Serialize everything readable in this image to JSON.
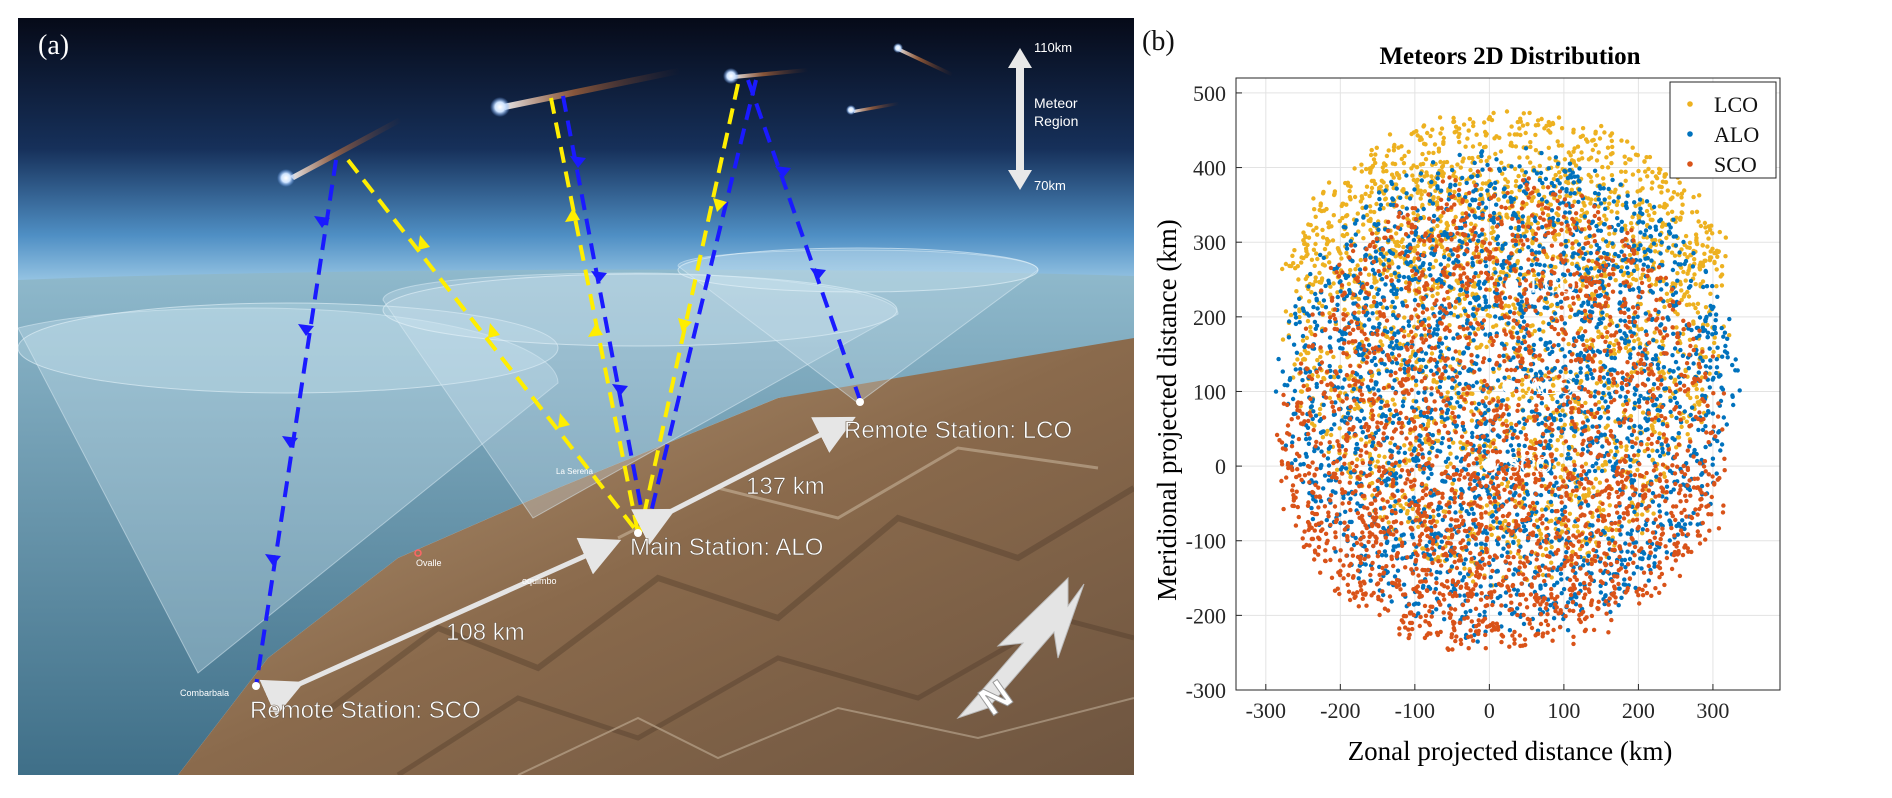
{
  "panel_a": {
    "tag": "(a)",
    "altitude_top": "110km",
    "altitude_bottom": "70km",
    "region_label_1": "Meteor",
    "region_label_2": "Region",
    "station_lco": "Remote Station: LCO",
    "station_alo": "Main Station: ALO",
    "station_sco": "Remote Station: SCO",
    "dist_alo_lco": "137 km",
    "dist_alo_sco": "108 km",
    "place_combarbala": "Combarbala",
    "place_ovalle": "Ovalle",
    "place_la_serena": "La Serena",
    "place_coquimbo": "oquimbo",
    "north_label": "N",
    "colors": {
      "monostatic_path": "#1a1aff",
      "forward_path": "#ffee00",
      "sky_top": "#0a1226",
      "sky_horizon": "#9fd0ee",
      "ocean": "#5c8fa8",
      "land": "#8a6f52"
    }
  },
  "panel_b": {
    "tag": "(b)"
  },
  "chart_data": {
    "type": "scatter",
    "title": "Meteors 2D Distribution",
    "xlabel": "Zonal projected distance (km)",
    "ylabel": "Meridional projected distance (km)",
    "xlim": [
      -340,
      390
    ],
    "ylim": [
      -300,
      520
    ],
    "xticks": [
      -300,
      -200,
      -100,
      0,
      100,
      200,
      300
    ],
    "yticks": [
      -300,
      -200,
      -100,
      0,
      100,
      200,
      300,
      400,
      500
    ],
    "grid": true,
    "legend": "top-right",
    "series": [
      {
        "name": "LCO",
        "color": "#EDB120",
        "center": [
          25,
          240
        ],
        "extent": {
          "left": -285,
          "right": 330,
          "top": 480,
          "bottom": -170
        }
      },
      {
        "name": "ALO",
        "color": "#0072BD",
        "center": [
          20,
          105
        ],
        "extent": {
          "left": -290,
          "right": 340,
          "top": 430,
          "bottom": -240
        }
      },
      {
        "name": "SCO",
        "color": "#D95319",
        "center": [
          0,
          0
        ],
        "extent": {
          "left": -290,
          "right": 330,
          "top": 400,
          "bottom": -255
        }
      }
    ],
    "station_markers": [
      {
        "name": "LCO",
        "x": 30,
        "y": 243
      },
      {
        "name": "ALO",
        "x": 26,
        "y": 107
      },
      {
        "name": "SCO",
        "x": 0,
        "y": 2
      }
    ]
  }
}
